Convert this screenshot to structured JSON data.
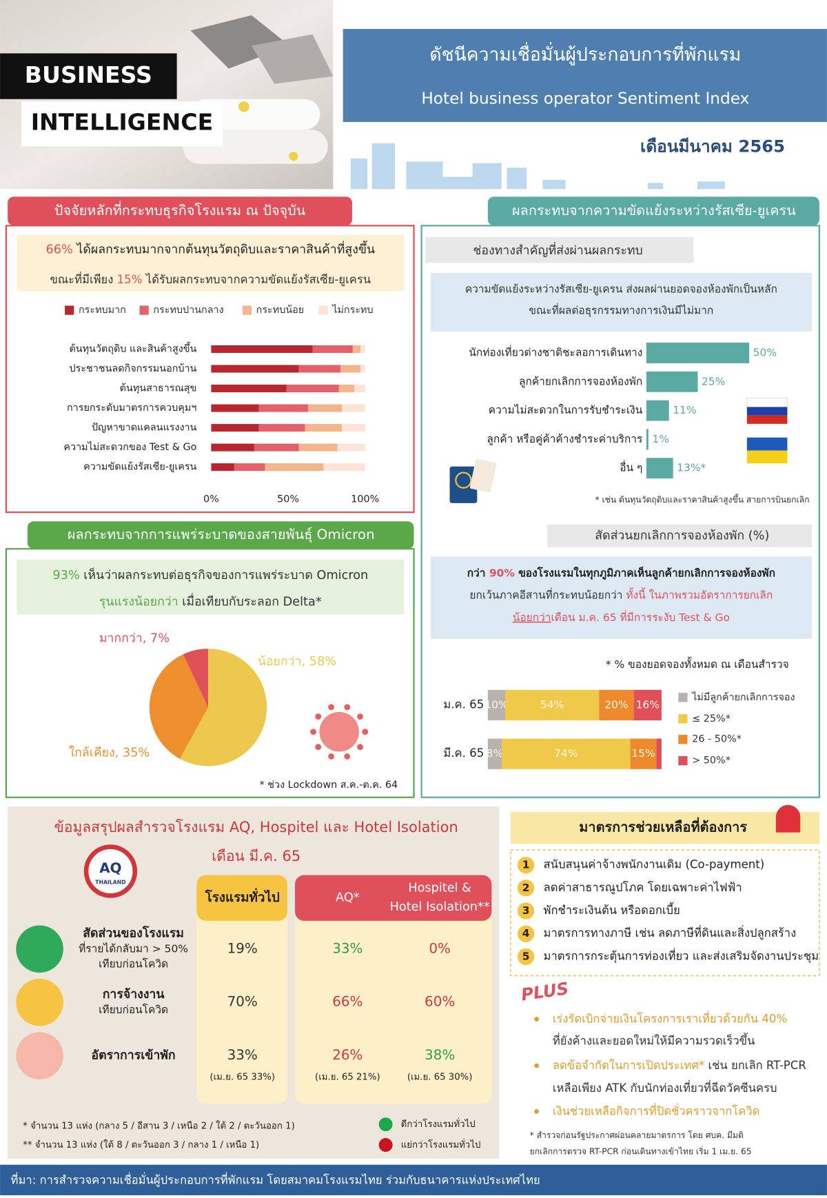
{
  "header": {
    "badge_1": "BUSINESS",
    "badge_2": "INTELLIGENCE",
    "title_th": "ดัชนีความเชื่อมั่นผู้ประกอบการที่พักแรม",
    "title_en": "Hotel business operator Sentiment Index",
    "period": "เดือนมีนาคม 2565"
  },
  "factors": {
    "heading": "ปัจจัยหลักที่กระทบธุรกิจโรงแรม ณ ปัจจุบัน",
    "summary": [
      [
        "66%",
        " ได้ผลกระทบมากจากต้นทุนวัตถุดิบและราคาสินค้าที่สูงขึ้น"
      ],
      [
        "ขณะที่มีเพียง ",
        "15%",
        " ได้รับผลกระทบจากความขัดแย้งรัสเซีย-ยูเครน"
      ]
    ]
  },
  "omicron": {
    "heading": "ผลกระทบจากการแพร่ระบาดของสายพันธุ์ Omicron",
    "summary": [
      [
        "93%",
        " เห็นว่าผลกระทบต่อธุรกิจของการแพร่ระบาด Omicron"
      ],
      [
        "รุนแรงน้อยกว่า",
        " เมื่อเทียบกับระลอก Delta*"
      ]
    ],
    "note": "* ช่วง Lockdown ส.ค.-ต.ค. 64"
  },
  "conflict": {
    "heading": "ผลกระทบจากความขัดแย้งระหว่างรัสเซีย-ยูเครน",
    "subheading": "ช่องทางสำคัญที่ส่งผ่านผลกระทบ",
    "summary": [
      "ความขัดแย้งระหว่างรัสเซีย-ยูเครน ส่งผลผ่านยอดจองห้องพักเป็นหลัก",
      "ขณะที่ผลต่อธุรกรรมทางการเงินมีไม่มาก"
    ],
    "note": "* เช่น ต้นทุนวัตถุดิบและราคาสินค้าสูงขึ้น สายการบินยกเลิก"
  },
  "cancellation": {
    "subheading": "สัดส่วนยกเลิกการจองห้องพัก (%)",
    "summary": [
      [
        "กว่า ",
        "90%",
        " ของโรงแรมในทุกภูมิภาคเห็นลูกค้ายกเลิกการจองห้องพัก"
      ],
      [
        "ยกเว้นภาคอีสานที่กระทบน้อยกว่า ",
        "ทั้งนี้ ในภาพรวมอัตราการยกเลิก"
      ],
      [
        "น้อยกว่า",
        "เดือน ม.ค. 65 ที่มีการระงับ Test & Go"
      ]
    ],
    "note": "* % ของยอดจองทั้งหมด ณ เดือนสำรวจ"
  },
  "chart_data": [
    {
      "type": "bar",
      "orientation": "horizontal",
      "stacked": true,
      "categories": [
        "ต้นทุนวัตถุดิบ และสินค้าสูงขึ้น",
        "ประชาชนลดกิจกรรมนอกบ้าน",
        "ต้นทุนสาธารณสุข",
        "การยกระดับมาตรการควบคุมฯ",
        "ปัญหาขาดแคลนแรงงาน",
        "ความไม่สะดวกของ Test & Go",
        "ความขัดแย้งรัสเซีย-ยูเครน"
      ],
      "series": [
        {
          "name": "กระทบมาก",
          "color": "#b8262e",
          "values": [
            66,
            57,
            49,
            31,
            31,
            28,
            15
          ]
        },
        {
          "name": "กระทบปานกลาง",
          "color": "#e2616a",
          "values": [
            26,
            27,
            34,
            32,
            30,
            29,
            20
          ]
        },
        {
          "name": "กระทบน้อย",
          "color": "#f3b68c",
          "values": [
            5,
            13,
            10,
            22,
            24,
            25,
            38
          ]
        },
        {
          "name": "ไม่กระทบ",
          "color": "#fbe3d8",
          "values": [
            3,
            3,
            7,
            15,
            15,
            18,
            27
          ]
        }
      ],
      "xlim": [
        0,
        100
      ],
      "xticks": [
        {
          "value": 0,
          "label": "0%"
        },
        {
          "value": 50,
          "label": "50%"
        },
        {
          "value": 100,
          "label": "100%"
        }
      ],
      "grid": false
    },
    {
      "type": "bar",
      "orientation": "horizontal",
      "categories": [
        "นักท่องเที่ยวต่างชาติชะลอการเดินทาง",
        "ลูกค้ายกเลิกการจองห้องพัก",
        "ความไม่สะดวกในการรับชำระเงิน",
        "ลูกค้า หรือคู่ค้าค้างชำระค่าบริการ",
        "อื่น ๆ"
      ],
      "values": [
        50,
        25,
        11,
        1,
        13
      ],
      "value_labels": [
        "50%",
        "25%",
        "11%",
        "1%",
        "13%*"
      ],
      "color": "#5aa9a2"
    },
    {
      "type": "pie",
      "labels": [
        "น้อยกว่า, 58%",
        "ใกล้เคียง, 35%",
        "มากกว่า, 7%"
      ],
      "values": [
        58,
        35,
        7
      ],
      "colors": [
        "#ecc84c",
        "#ee8f2e",
        "#e05058"
      ]
    },
    {
      "type": "bar",
      "orientation": "horizontal",
      "stacked": true,
      "categories": [
        "ม.ค. 65",
        "มี.ค. 65"
      ],
      "series": [
        {
          "name": "ไม่มีลูกค้ายกเลิกการจอง",
          "color": "#b9b1ad",
          "values": [
            10,
            8
          ],
          "value_labels": [
            "10%",
            "8%"
          ]
        },
        {
          "name": "≤ 25%*",
          "color": "#f0c94a",
          "values": [
            54,
            74
          ],
          "value_labels": [
            "54%",
            "74%"
          ]
        },
        {
          "name": "26 - 50%*",
          "color": "#ee8a2b",
          "values": [
            20,
            15
          ],
          "value_labels": [
            "20%",
            "15%"
          ]
        },
        {
          "name": "> 50%*",
          "color": "#e0505a",
          "values": [
            16,
            3
          ],
          "value_labels": [
            "16%",
            null
          ]
        }
      ]
    }
  ],
  "survey": {
    "title": [
      "ข้อมูลสรุปผลสำรวจโรงแรม AQ, Hospitel และ Hotel Isolation",
      "เดือน มี.ค. 65"
    ],
    "logo": [
      "AQ",
      "THAILAND"
    ],
    "columns": [
      [
        "โรงแรมทั่วไป"
      ],
      [
        "AQ*"
      ],
      [
        "Hospitel &",
        "Hotel Isolation**"
      ]
    ],
    "rows": [
      {
        "label": [
          "สัดส่วนของโรงแรม",
          "ที่รายได้กลับมา > 50%",
          "เทียบก่อนโควิด"
        ],
        "cells": [
          "19%",
          "33%",
          "0%"
        ],
        "cell_colors": [
          "#333333",
          "#2e9a50",
          "#d2353a"
        ]
      },
      {
        "label": [
          "การจ้างงาน",
          "เทียบก่อนโควิด"
        ],
        "cells": [
          "70%",
          "66%",
          "60%"
        ],
        "cell_colors": [
          "#333333",
          "#d2353a",
          "#d2353a"
        ]
      },
      {
        "label": [
          "อัตราการเข้าพัก"
        ],
        "cells": [
          "33%",
          "26%",
          "38%"
        ],
        "cell_colors": [
          "#333333",
          "#d2353a",
          "#2e9a50"
        ],
        "notes": [
          "(เม.ย. 65 33%)",
          "(เม.ย. 65 21%)",
          "(เม.ย. 65 30%)"
        ]
      }
    ],
    "footnotes": [
      "* จำนวน 13 แห่ง (กลาง 5 / อีสาน 3 / เหนือ 2 / ใต้ 2 / ตะวันออก 1)",
      "** จำนวน 13 แห่ง (ใต้ 8 / ตะวันออก 3 / กลาง 1 / เหนือ 1)"
    ],
    "legend": [
      {
        "label": "ดีกว่าโรงแรมทั่วไป",
        "color": "#19a84a"
      },
      {
        "label": "แย่กว่าโรงแรมทั่วไป",
        "color": "#c8141e"
      }
    ]
  },
  "measures": {
    "heading": "มาตรการช่วยเหลือที่ต้องการ",
    "items": [
      {
        "no": "1",
        "text": "สนับสนุนค่าจ้างพนักงานเดิม (Co-payment)"
      },
      {
        "no": "2",
        "text": "ลดค่าสาธารณูปโภค โดยเฉพาะค่าไฟฟ้า"
      },
      {
        "no": "3",
        "text": "พักชำระเงินต้น หรือดอกเบี้ย"
      },
      {
        "no": "4",
        "text": "มาตรการทางภาษี เช่น ลดภาษีที่ดินและสิ่งปลูกสร้าง"
      },
      {
        "no": "5",
        "text": "มาตรการกระตุ้นการท่องเที่ยว และส่งเสริมจัดงานประชุม"
      }
    ]
  },
  "plus": {
    "title": "PLUS",
    "items": [
      {
        "lines": [
          [
            "เร่งรัดเบิกจ่ายเงินโครงการเราเที่ยวด้วยกัน 40%"
          ],
          [
            "ที่ยังค้างและยอดใหม่ให้มีความรวดเร็วขึ้น"
          ]
        ]
      },
      {
        "lines": [
          [
            "ลดข้อจำกัดในการเปิดประเทศ*",
            " เช่น ยกเลิก RT-PCR"
          ],
          [
            "เหลือเพียง ATK กับนักท่องเที่ยวที่ฉีดวัคซีนครบ"
          ]
        ]
      },
      {
        "lines": [
          [
            "เงินช่วยเหลือกิจการที่ปิดชั่วคราวจากโควิด"
          ]
        ]
      }
    ],
    "footnote": [
      "* สำรวจก่อนรัฐประกาศผ่อนคลายมาตรการ โดย ศบค. มีมติ",
      "ยกเลิกการตรวจ RT-PCR ก่อนเดินทางเข้าไทย เริ่ม 1 เม.ย. 65"
    ]
  },
  "source": "ที่มา: การสำรวจความเชื่อมั่นผู้ประกอบการที่พักแรม โดยสมาคมโรงแรมไทย ร่วมกับธนาคารแห่งประเทศไทย"
}
